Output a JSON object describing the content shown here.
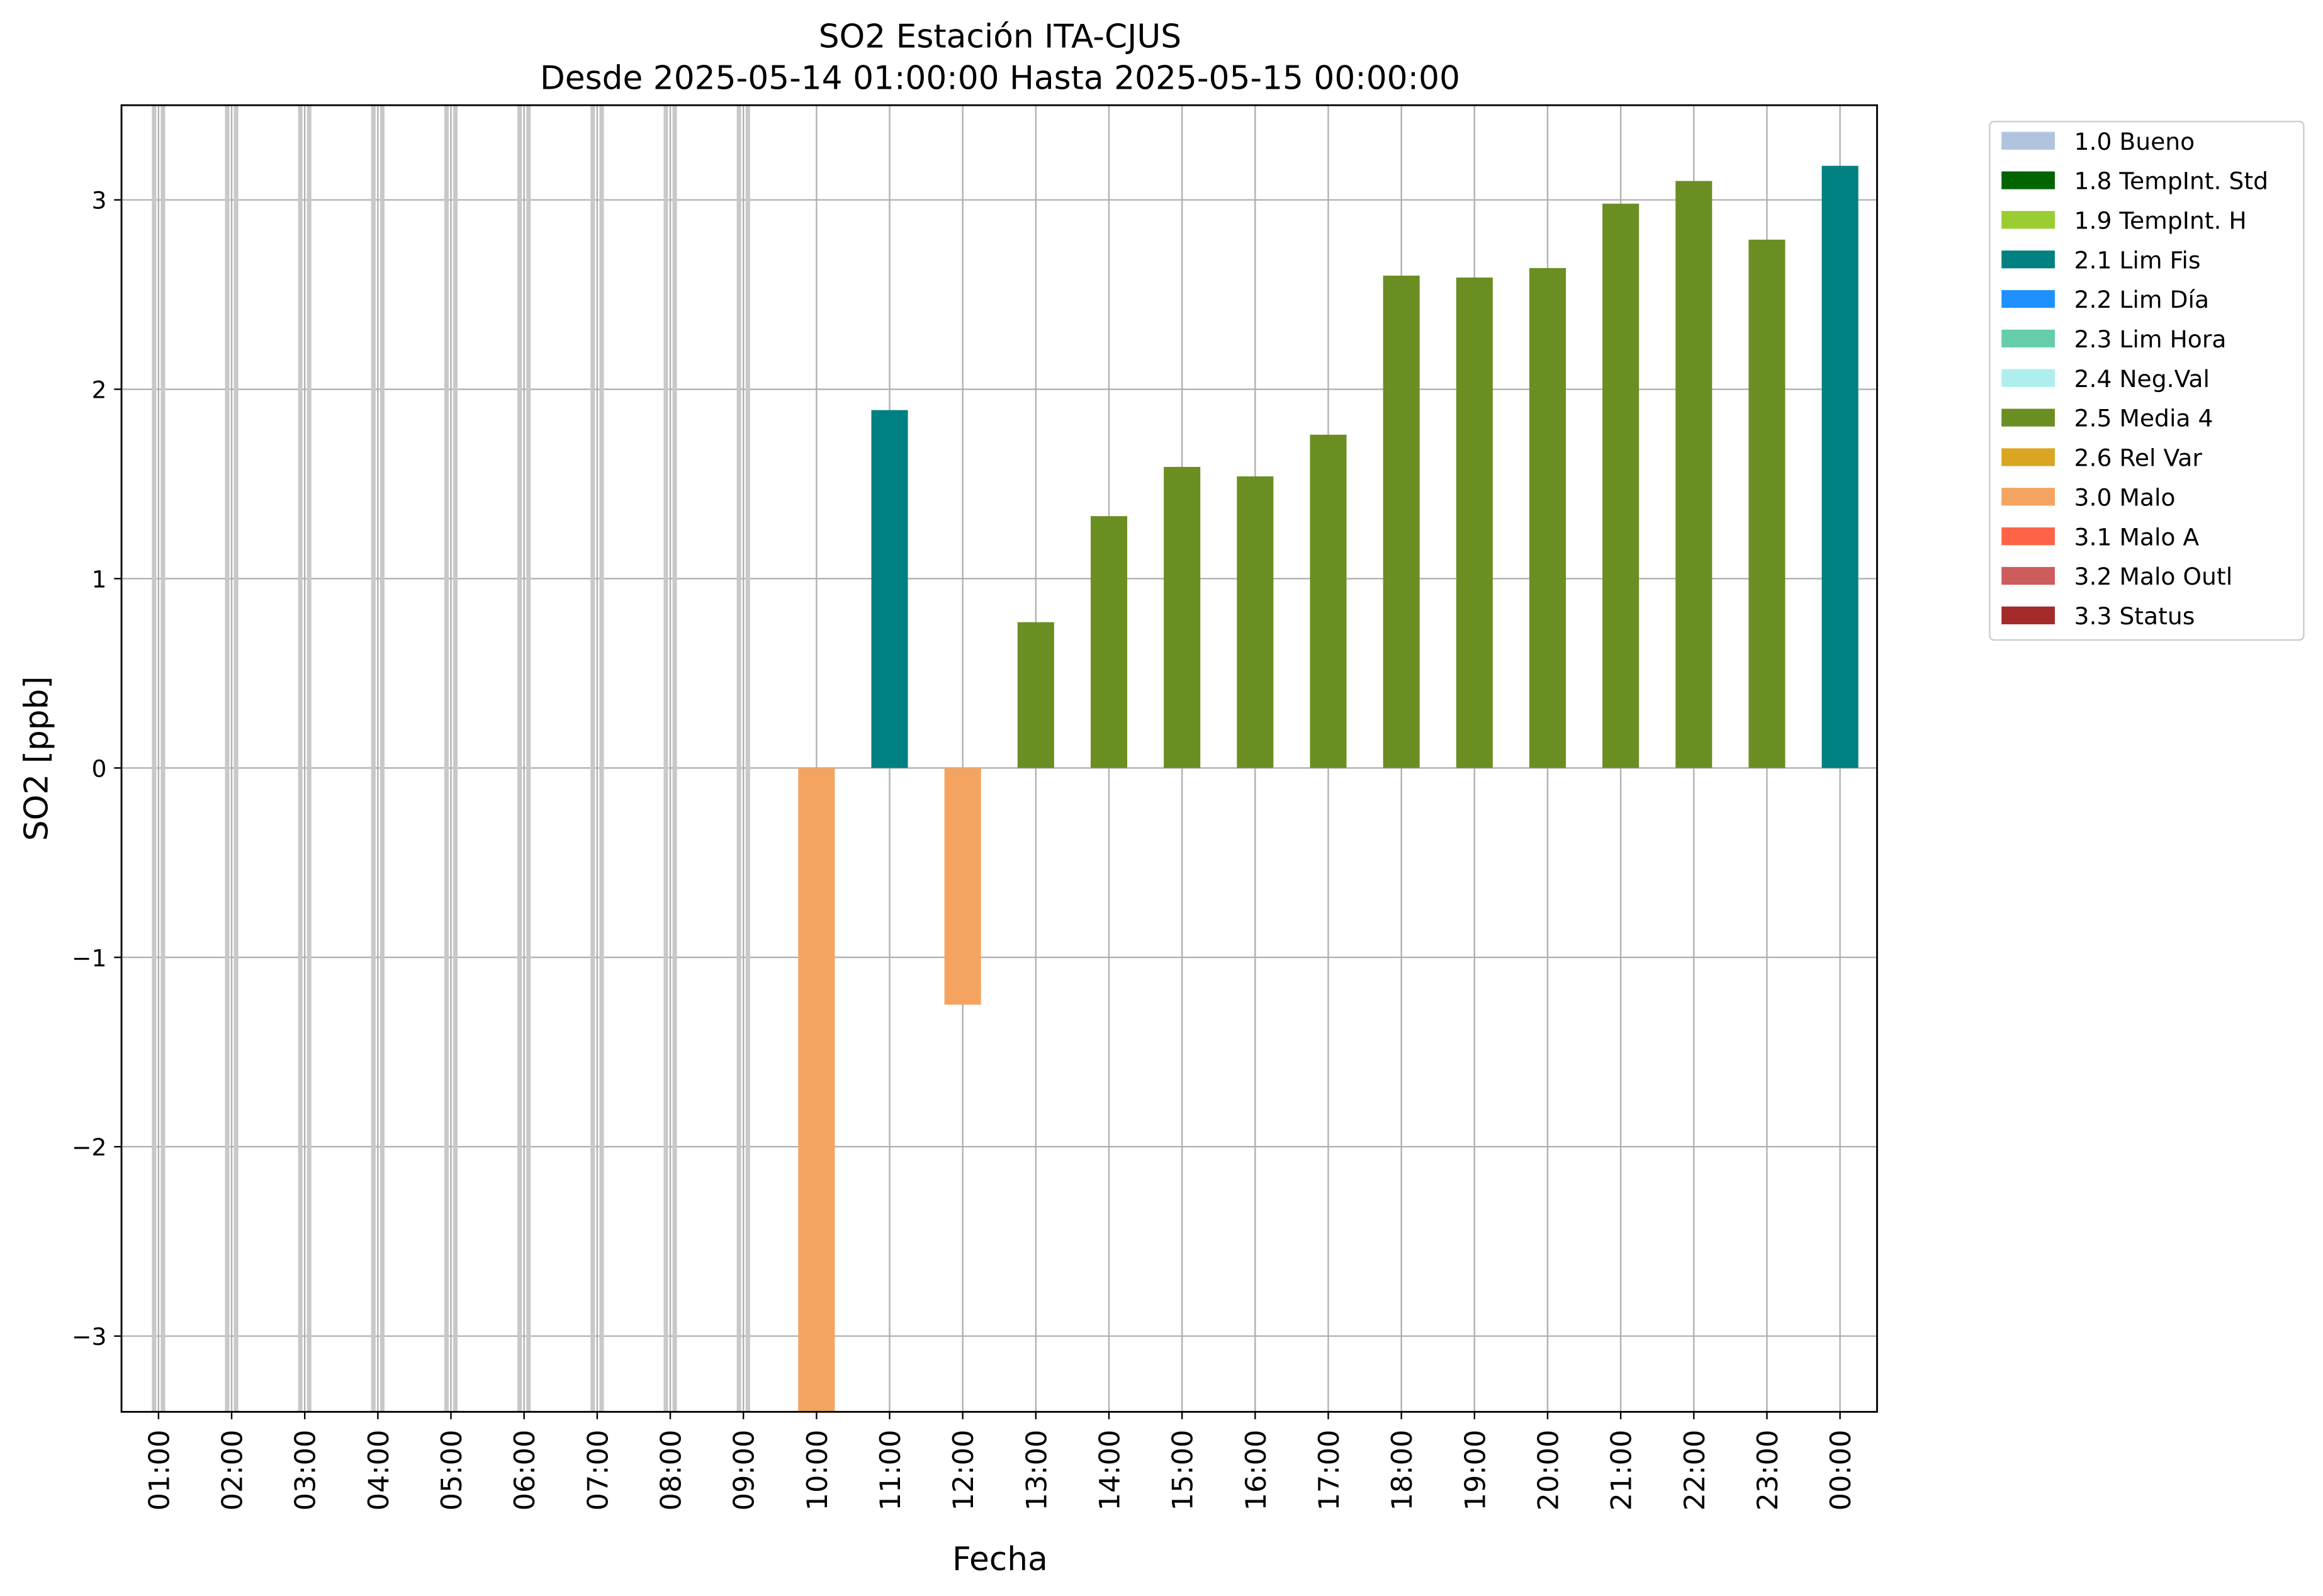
{
  "chart_data": {
    "type": "bar",
    "title": "SO2 Estación ITA-CJUS",
    "subtitle": "Desde 2025-05-14 01:00:00 Hasta 2025-05-15 00:00:00",
    "xlabel": "Fecha",
    "ylabel": "SO2 [ppb]",
    "categories": [
      "01:00",
      "02:00",
      "03:00",
      "04:00",
      "05:00",
      "06:00",
      "07:00",
      "08:00",
      "09:00",
      "10:00",
      "11:00",
      "12:00",
      "13:00",
      "14:00",
      "15:00",
      "16:00",
      "17:00",
      "18:00",
      "19:00",
      "20:00",
      "21:00",
      "22:00",
      "23:00",
      "00:00"
    ],
    "values": [
      null,
      null,
      null,
      null,
      null,
      null,
      null,
      null,
      null,
      -3.5,
      1.89,
      -1.25,
      0.77,
      1.33,
      1.59,
      1.54,
      1.76,
      2.6,
      2.59,
      2.64,
      2.98,
      3.1,
      2.79,
      3.18
    ],
    "colors": [
      null,
      null,
      null,
      null,
      null,
      null,
      null,
      null,
      null,
      "#f4a460",
      "#008080",
      "#f4a460",
      "#6b8e23",
      "#6b8e23",
      "#6b8e23",
      "#6b8e23",
      "#6b8e23",
      "#6b8e23",
      "#6b8e23",
      "#6b8e23",
      "#6b8e23",
      "#6b8e23",
      "#6b8e23",
      "#008080"
    ],
    "missing_color": "#c8c8c8",
    "ylim": [
      -3.4,
      3.5
    ],
    "yticks": [
      {
        "value": -3,
        "label": "−3"
      },
      {
        "value": -2,
        "label": "−2"
      },
      {
        "value": -1,
        "label": "−1"
      },
      0,
      1,
      2,
      3
    ],
    "grid": true,
    "legend": [
      {
        "label": "1.0 Bueno",
        "color": "#b0c4de"
      },
      {
        "label": "1.8 TempInt. Std",
        "color": "#006400"
      },
      {
        "label": "1.9 TempInt. H",
        "color": "#9acd32"
      },
      {
        "label": "2.1 Lim Fis",
        "color": "#008080"
      },
      {
        "label": "2.2 Lim Día",
        "color": "#1e90ff"
      },
      {
        "label": "2.3 Lim Hora",
        "color": "#66cdaa"
      },
      {
        "label": "2.4 Neg.Val",
        "color": "#afeeee"
      },
      {
        "label": "2.5 Media 4",
        "color": "#6b8e23"
      },
      {
        "label": "2.6 Rel Var",
        "color": "#daa520"
      },
      {
        "label": "3.0 Malo",
        "color": "#f4a460"
      },
      {
        "label": "3.1 Malo A",
        "color": "#ff6347"
      },
      {
        "label": "3.2 Malo Outl",
        "color": "#cd5c5c"
      },
      {
        "label": "3.3 Status",
        "color": "#a52a2a"
      }
    ],
    "legend_position": "outside right"
  }
}
